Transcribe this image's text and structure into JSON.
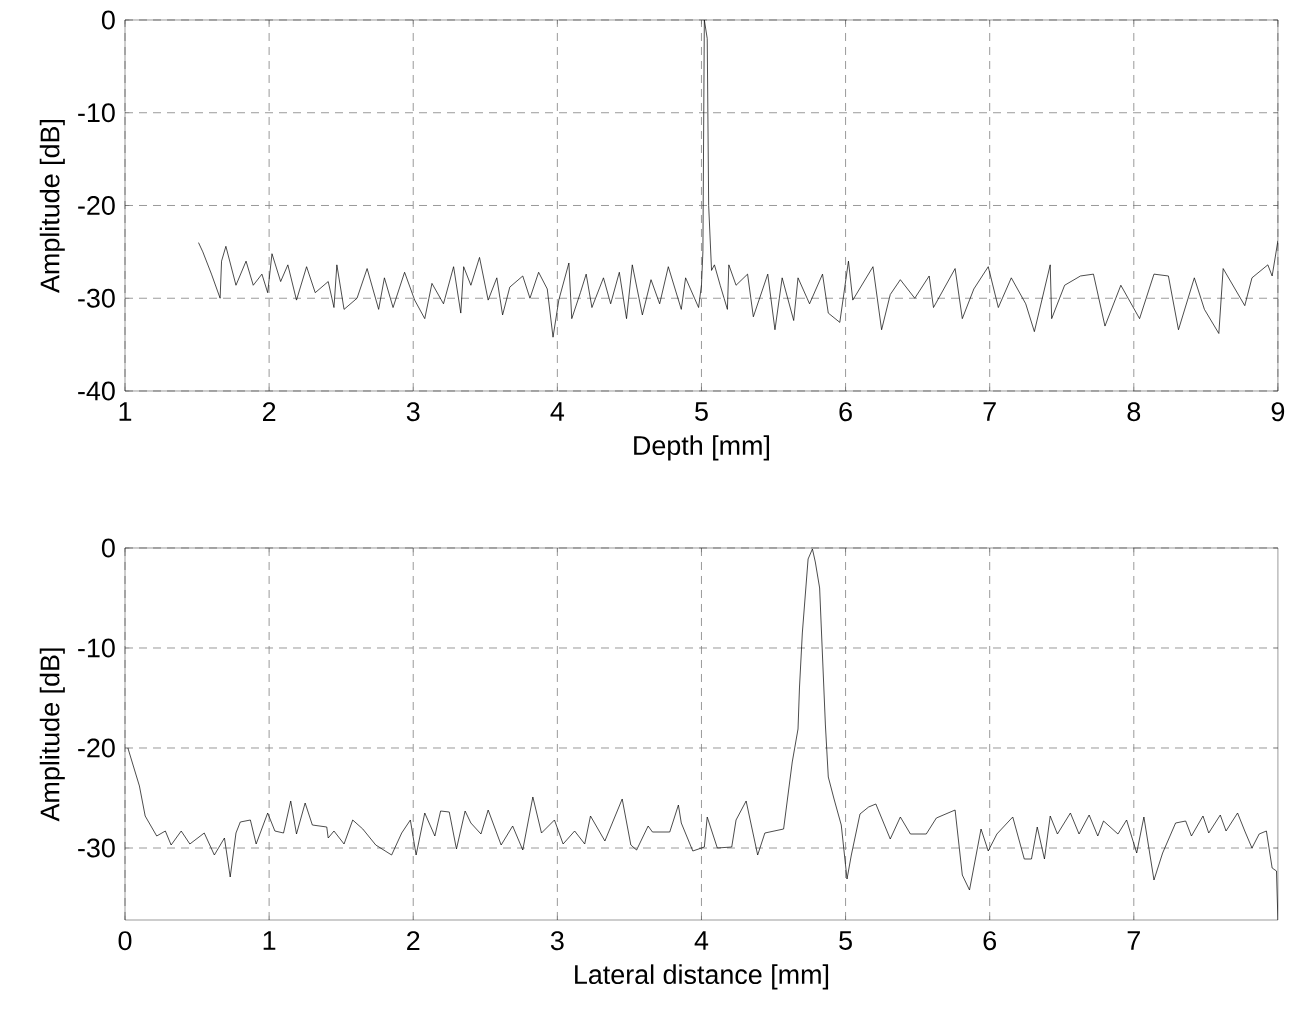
{
  "chart_data": [
    {
      "type": "line",
      "xlabel": "Depth [mm]",
      "ylabel": "Amplitude [dB]",
      "xlim": [
        1,
        9
      ],
      "ylim": [
        -40,
        0
      ],
      "xticks": [
        1,
        2,
        3,
        4,
        5,
        6,
        7,
        8,
        9
      ],
      "yticks": [
        -40,
        -30,
        -20,
        -10,
        0
      ],
      "grid": true,
      "series": [
        {
          "color": "#000000",
          "x": [
            1.51,
            1.54,
            1.6,
            1.66,
            1.67,
            1.7,
            1.77,
            1.84,
            1.89,
            1.95,
            1.99,
            2.02,
            2.08,
            2.13,
            2.19,
            2.26,
            2.32,
            2.41,
            2.45,
            2.47,
            2.52,
            2.61,
            2.68,
            2.76,
            2.8,
            2.86,
            2.94,
            3.01,
            3.08,
            3.13,
            3.21,
            3.28,
            3.33,
            3.35,
            3.4,
            3.46,
            3.52,
            3.58,
            3.62,
            3.67,
            3.76,
            3.81,
            3.87,
            3.93,
            3.97,
            4.01,
            4.08,
            4.1,
            4.16,
            4.2,
            4.24,
            4.32,
            4.37,
            4.43,
            4.48,
            4.52,
            4.59,
            4.65,
            4.71,
            4.77,
            4.86,
            4.89,
            4.98,
            5.0,
            5.01,
            5.02,
            5.04,
            5.05,
            5.07,
            5.09,
            5.13,
            5.18,
            5.19,
            5.24,
            5.32,
            5.36,
            5.46,
            5.51,
            5.56,
            5.64,
            5.67,
            5.75,
            5.84,
            5.88,
            5.96,
            6.02,
            6.05,
            6.19,
            6.25,
            6.31,
            6.38,
            6.48,
            6.58,
            6.61,
            6.76,
            6.81,
            6.89,
            6.99,
            7.06,
            7.15,
            7.25,
            7.31,
            7.42,
            7.43,
            7.52,
            7.63,
            7.72,
            7.8,
            7.91,
            8.04,
            8.14,
            8.24,
            8.31,
            8.42,
            8.49,
            8.59,
            8.62,
            8.77,
            8.82,
            8.93,
            8.96,
            9.0
          ],
          "values": [
            -24.0,
            -25.0,
            -27.4,
            -30.0,
            -26.0,
            -24.4,
            -28.6,
            -26.0,
            -28.6,
            -27.4,
            -29.4,
            -25.2,
            -28.2,
            -26.4,
            -30.2,
            -26.6,
            -29.4,
            -28.2,
            -31.0,
            -26.4,
            -31.2,
            -30.0,
            -26.8,
            -31.2,
            -27.8,
            -31.0,
            -27.2,
            -30.2,
            -32.2,
            -28.4,
            -30.6,
            -26.6,
            -31.6,
            -26.6,
            -28.6,
            -25.6,
            -30.2,
            -27.8,
            -31.8,
            -28.8,
            -27.6,
            -30.0,
            -27.2,
            -29.0,
            -34.2,
            -30.2,
            -26.2,
            -32.2,
            -29.4,
            -27.4,
            -31.0,
            -27.8,
            -30.6,
            -27.2,
            -32.2,
            -26.4,
            -31.8,
            -28.0,
            -30.6,
            -26.6,
            -31.2,
            -27.8,
            -31.0,
            -28.6,
            -25.0,
            0,
            -2.0,
            -20.0,
            -27.0,
            -26.4,
            -28.6,
            -31.2,
            -26.4,
            -28.6,
            -27.4,
            -32.0,
            -27.4,
            -33.4,
            -27.8,
            -32.4,
            -27.8,
            -30.6,
            -27.4,
            -31.6,
            -32.6,
            -26.0,
            -30.2,
            -26.6,
            -33.4,
            -29.6,
            -28.0,
            -30.0,
            -27.6,
            -31.0,
            -26.8,
            -32.2,
            -29.0,
            -26.6,
            -31.0,
            -27.8,
            -30.6,
            -33.6,
            -26.4,
            -32.2,
            -28.6,
            -27.6,
            -27.4,
            -33.0,
            -28.6,
            -32.2,
            -27.4,
            -27.6,
            -33.4,
            -27.8,
            -31.2,
            -33.8,
            -26.8,
            -30.8,
            -27.8,
            -26.4,
            -27.6,
            -23.8
          ]
        }
      ]
    },
    {
      "type": "line",
      "xlabel": "Lateral distance [mm]",
      "ylabel": "Amplitude [dB]",
      "xlim": [
        0,
        8.0
      ],
      "ylim": [
        -37.2,
        0
      ],
      "xticks": [
        0,
        1,
        2,
        3,
        4,
        5,
        6,
        7
      ],
      "yticks": [
        -30,
        -20,
        -10,
        0
      ],
      "grid": true,
      "series": [
        {
          "color": "#000000",
          "x": [
            0.02,
            0.1,
            0.14,
            0.22,
            0.28,
            0.32,
            0.39,
            0.45,
            0.55,
            0.62,
            0.69,
            0.73,
            0.77,
            0.8,
            0.87,
            0.91,
            0.99,
            1.04,
            1.1,
            1.15,
            1.19,
            1.25,
            1.3,
            1.4,
            1.41,
            1.45,
            1.52,
            1.58,
            1.65,
            1.74,
            1.85,
            1.92,
            1.98,
            2.02,
            2.08,
            2.15,
            2.19,
            2.25,
            2.3,
            2.36,
            2.4,
            2.47,
            2.52,
            2.61,
            2.69,
            2.76,
            2.83,
            2.89,
            2.98,
            3.04,
            3.12,
            3.19,
            3.23,
            3.33,
            3.45,
            3.51,
            3.55,
            3.63,
            3.66,
            3.78,
            3.84,
            3.86,
            3.94,
            4.02,
            4.04,
            4.11,
            4.21,
            4.24,
            4.31,
            4.39,
            4.44,
            4.57,
            4.63,
            4.67,
            4.68,
            4.7,
            4.74,
            4.77,
            4.79,
            4.82,
            4.86,
            4.88,
            4.92,
            4.97,
            5.01,
            5.04,
            5.1,
            5.16,
            5.21,
            5.31,
            5.38,
            5.45,
            5.56,
            5.63,
            5.76,
            5.81,
            5.86,
            5.94,
            5.99,
            6.05,
            6.16,
            6.24,
            6.29,
            6.33,
            6.38,
            6.42,
            6.47,
            6.56,
            6.62,
            6.69,
            6.75,
            6.79,
            6.89,
            6.95,
            7.02,
            7.07,
            7.14,
            7.2,
            7.29,
            7.36,
            7.4,
            7.48,
            7.52,
            7.6,
            7.64,
            7.72,
            7.77,
            7.82,
            7.87,
            7.92,
            7.96,
            7.99,
            8.0
          ],
          "values": [
            -20.0,
            -23.8,
            -26.8,
            -28.8,
            -28.3,
            -29.7,
            -28.3,
            -29.6,
            -28.5,
            -30.7,
            -29.0,
            -32.9,
            -28.5,
            -27.4,
            -27.2,
            -29.6,
            -26.5,
            -28.3,
            -28.5,
            -25.3,
            -28.6,
            -25.5,
            -27.7,
            -27.9,
            -29.0,
            -28.3,
            -29.6,
            -27.2,
            -28.1,
            -29.7,
            -30.7,
            -28.5,
            -27.2,
            -30.7,
            -26.5,
            -28.8,
            -26.3,
            -26.4,
            -30.1,
            -26.3,
            -27.5,
            -28.6,
            -26.2,
            -29.7,
            -27.8,
            -30.2,
            -24.9,
            -28.5,
            -27.2,
            -29.6,
            -28.3,
            -29.6,
            -26.8,
            -29.3,
            -25.1,
            -29.7,
            -30.2,
            -27.8,
            -28.4,
            -28.4,
            -25.7,
            -27.5,
            -30.3,
            -29.9,
            -26.9,
            -30.0,
            -29.9,
            -27.2,
            -25.3,
            -30.7,
            -28.5,
            -28.1,
            -21.4,
            -18.1,
            -14.0,
            -8.5,
            -1.1,
            -0.1,
            -1.4,
            -4.0,
            -17.7,
            -22.9,
            -25.1,
            -27.7,
            -33.1,
            -30.7,
            -26.6,
            -25.9,
            -25.6,
            -29.1,
            -26.9,
            -28.6,
            -28.6,
            -27.0,
            -26.2,
            -32.7,
            -34.2,
            -28.1,
            -30.3,
            -28.6,
            -26.9,
            -31.1,
            -31.1,
            -27.9,
            -31.1,
            -26.8,
            -28.6,
            -26.5,
            -28.6,
            -26.7,
            -28.8,
            -27.3,
            -28.6,
            -27.2,
            -30.5,
            -26.9,
            -33.2,
            -30.5,
            -27.5,
            -27.3,
            -28.8,
            -26.8,
            -28.5,
            -26.7,
            -28.3,
            -26.5,
            -28.3,
            -30.0,
            -28.6,
            -28.3,
            -32.0,
            -32.3,
            -37.2
          ]
        }
      ]
    }
  ]
}
